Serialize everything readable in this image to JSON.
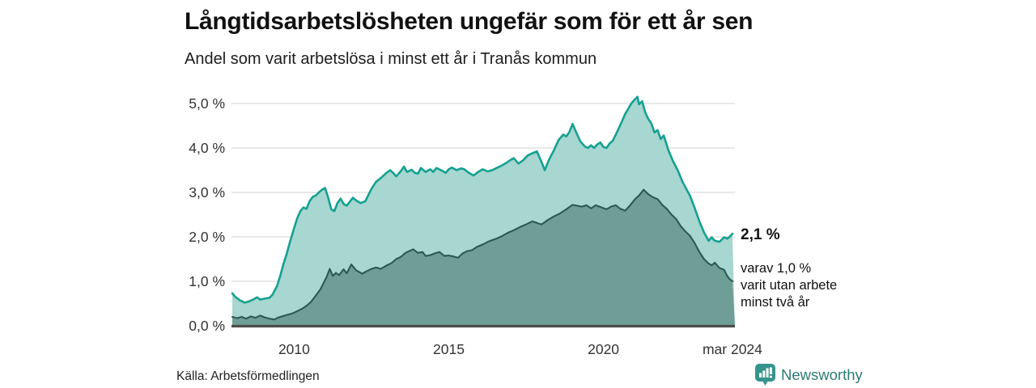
{
  "header": {
    "title": "Långtidsarbetslösheten ungefär som för ett år sen",
    "subtitle": "Andel som varit arbetslösa i minst ett år i Tranås kommun"
  },
  "annotation": {
    "value_label": "2,1 %",
    "detail_lines": [
      "varav 1,0 %",
      "varit utan arbete",
      "minst två år"
    ]
  },
  "footer": {
    "source": "Källa: Arbetsförmedlingen",
    "brand": "Newsworthy"
  },
  "colors": {
    "title": "#111111",
    "grid": "#d9d9d9",
    "baseline": "#4d4d4d",
    "tick_text": "#333333",
    "series_total_line": "#14a191",
    "series_total_fill": "#a8d6d0",
    "series_two_years_line": "#2b5a52",
    "series_two_years_fill": "#6f9e96",
    "brand_teal": "#2d7a74",
    "logo_teal": "#35948d"
  },
  "chart_data": {
    "type": "area",
    "title": "Långtidsarbetslösheten ungefär som för ett år sen",
    "subtitle": "Andel som varit arbetslösa i minst ett år i Tranås kommun",
    "unit": "percent",
    "grid": true,
    "legend_position": "none",
    "x_domain": [
      2008.0,
      2024.25
    ],
    "ylim": [
      0,
      5.5
    ],
    "y_ticks": [
      {
        "value": 0,
        "label": "0,0 %"
      },
      {
        "value": 1,
        "label": "1,0 %"
      },
      {
        "value": 2,
        "label": "2,0 %"
      },
      {
        "value": 3,
        "label": "3,0 %"
      },
      {
        "value": 4,
        "label": "4,0 %"
      },
      {
        "value": 5,
        "label": "5,0 %"
      }
    ],
    "x_ticks": [
      {
        "value": 2010,
        "label": "2010"
      },
      {
        "value": 2015,
        "label": "2015"
      },
      {
        "value": 2020,
        "label": "2020"
      },
      {
        "value": 2024.17,
        "label": "mar 2024"
      }
    ],
    "series": [
      {
        "name": "Andel arbetslösa minst ett år",
        "end_label": "2,1 %",
        "line_color": "#14a191",
        "fill_color": "#a8d6d0",
        "points": [
          [
            2008.0,
            0.73
          ],
          [
            2008.1,
            0.65
          ],
          [
            2008.25,
            0.57
          ],
          [
            2008.4,
            0.52
          ],
          [
            2008.55,
            0.55
          ],
          [
            2008.7,
            0.6
          ],
          [
            2008.8,
            0.64
          ],
          [
            2008.9,
            0.59
          ],
          [
            2009.05,
            0.61
          ],
          [
            2009.2,
            0.63
          ],
          [
            2009.3,
            0.7
          ],
          [
            2009.45,
            0.9
          ],
          [
            2009.55,
            1.12
          ],
          [
            2009.65,
            1.38
          ],
          [
            2009.75,
            1.6
          ],
          [
            2009.85,
            1.85
          ],
          [
            2010.0,
            2.2
          ],
          [
            2010.1,
            2.42
          ],
          [
            2010.2,
            2.58
          ],
          [
            2010.3,
            2.66
          ],
          [
            2010.4,
            2.63
          ],
          [
            2010.5,
            2.8
          ],
          [
            2010.6,
            2.9
          ],
          [
            2010.7,
            2.93
          ],
          [
            2010.8,
            3.0
          ],
          [
            2010.9,
            3.06
          ],
          [
            2011.0,
            3.1
          ],
          [
            2011.1,
            2.88
          ],
          [
            2011.2,
            2.62
          ],
          [
            2011.3,
            2.58
          ],
          [
            2011.4,
            2.76
          ],
          [
            2011.5,
            2.86
          ],
          [
            2011.6,
            2.74
          ],
          [
            2011.7,
            2.7
          ],
          [
            2011.8,
            2.79
          ],
          [
            2011.9,
            2.88
          ],
          [
            2012.0,
            2.82
          ],
          [
            2012.15,
            2.76
          ],
          [
            2012.3,
            2.8
          ],
          [
            2012.4,
            2.94
          ],
          [
            2012.5,
            3.08
          ],
          [
            2012.65,
            3.24
          ],
          [
            2012.8,
            3.32
          ],
          [
            2012.95,
            3.42
          ],
          [
            2013.1,
            3.5
          ],
          [
            2013.2,
            3.44
          ],
          [
            2013.3,
            3.36
          ],
          [
            2013.45,
            3.48
          ],
          [
            2013.55,
            3.58
          ],
          [
            2013.65,
            3.46
          ],
          [
            2013.8,
            3.51
          ],
          [
            2013.9,
            3.44
          ],
          [
            2014.0,
            3.42
          ],
          [
            2014.1,
            3.55
          ],
          [
            2014.25,
            3.46
          ],
          [
            2014.4,
            3.52
          ],
          [
            2014.5,
            3.46
          ],
          [
            2014.6,
            3.55
          ],
          [
            2014.75,
            3.5
          ],
          [
            2014.9,
            3.44
          ],
          [
            2015.0,
            3.52
          ],
          [
            2015.1,
            3.56
          ],
          [
            2015.25,
            3.5
          ],
          [
            2015.4,
            3.54
          ],
          [
            2015.5,
            3.52
          ],
          [
            2015.65,
            3.44
          ],
          [
            2015.8,
            3.38
          ],
          [
            2015.95,
            3.46
          ],
          [
            2016.1,
            3.52
          ],
          [
            2016.25,
            3.47
          ],
          [
            2016.4,
            3.5
          ],
          [
            2016.55,
            3.55
          ],
          [
            2016.7,
            3.6
          ],
          [
            2016.85,
            3.66
          ],
          [
            2017.0,
            3.73
          ],
          [
            2017.1,
            3.77
          ],
          [
            2017.25,
            3.65
          ],
          [
            2017.4,
            3.72
          ],
          [
            2017.55,
            3.83
          ],
          [
            2017.7,
            3.88
          ],
          [
            2017.85,
            3.92
          ],
          [
            2018.0,
            3.68
          ],
          [
            2018.1,
            3.5
          ],
          [
            2018.25,
            3.75
          ],
          [
            2018.4,
            3.95
          ],
          [
            2018.55,
            4.18
          ],
          [
            2018.7,
            4.3
          ],
          [
            2018.8,
            4.26
          ],
          [
            2018.9,
            4.36
          ],
          [
            2019.0,
            4.54
          ],
          [
            2019.1,
            4.38
          ],
          [
            2019.25,
            4.15
          ],
          [
            2019.4,
            4.03
          ],
          [
            2019.5,
            4.0
          ],
          [
            2019.6,
            4.06
          ],
          [
            2019.7,
            4.0
          ],
          [
            2019.8,
            4.08
          ],
          [
            2019.9,
            4.12
          ],
          [
            2020.0,
            4.02
          ],
          [
            2020.1,
            4.0
          ],
          [
            2020.2,
            4.1
          ],
          [
            2020.3,
            4.16
          ],
          [
            2020.4,
            4.3
          ],
          [
            2020.5,
            4.45
          ],
          [
            2020.6,
            4.6
          ],
          [
            2020.7,
            4.76
          ],
          [
            2020.8,
            4.88
          ],
          [
            2020.9,
            5.0
          ],
          [
            2021.0,
            5.08
          ],
          [
            2021.1,
            5.15
          ],
          [
            2021.15,
            4.98
          ],
          [
            2021.25,
            5.05
          ],
          [
            2021.35,
            4.8
          ],
          [
            2021.45,
            4.65
          ],
          [
            2021.55,
            4.55
          ],
          [
            2021.65,
            4.35
          ],
          [
            2021.75,
            4.4
          ],
          [
            2021.85,
            4.2
          ],
          [
            2021.95,
            4.28
          ],
          [
            2022.1,
            3.95
          ],
          [
            2022.25,
            3.7
          ],
          [
            2022.4,
            3.5
          ],
          [
            2022.55,
            3.25
          ],
          [
            2022.7,
            3.05
          ],
          [
            2022.8,
            2.92
          ],
          [
            2022.95,
            2.65
          ],
          [
            2023.1,
            2.35
          ],
          [
            2023.25,
            2.1
          ],
          [
            2023.4,
            1.91
          ],
          [
            2023.5,
            1.99
          ],
          [
            2023.6,
            1.91
          ],
          [
            2023.75,
            1.89
          ],
          [
            2023.9,
            1.99
          ],
          [
            2024.0,
            1.96
          ],
          [
            2024.08,
            2.0
          ],
          [
            2024.17,
            2.07
          ]
        ]
      },
      {
        "name": "varav utan arbete minst två år",
        "end_label": "1,0 %",
        "line_color": "#2b5a52",
        "fill_color": "#6f9e96",
        "points": [
          [
            2008.0,
            0.2
          ],
          [
            2008.15,
            0.17
          ],
          [
            2008.3,
            0.2
          ],
          [
            2008.45,
            0.16
          ],
          [
            2008.6,
            0.21
          ],
          [
            2008.75,
            0.18
          ],
          [
            2008.9,
            0.23
          ],
          [
            2009.05,
            0.19
          ],
          [
            2009.2,
            0.16
          ],
          [
            2009.35,
            0.14
          ],
          [
            2009.5,
            0.19
          ],
          [
            2009.65,
            0.22
          ],
          [
            2009.8,
            0.25
          ],
          [
            2009.95,
            0.28
          ],
          [
            2010.1,
            0.33
          ],
          [
            2010.25,
            0.38
          ],
          [
            2010.4,
            0.45
          ],
          [
            2010.55,
            0.54
          ],
          [
            2010.7,
            0.68
          ],
          [
            2010.85,
            0.82
          ],
          [
            2010.95,
            0.96
          ],
          [
            2011.05,
            1.1
          ],
          [
            2011.15,
            1.28
          ],
          [
            2011.25,
            1.12
          ],
          [
            2011.35,
            1.19
          ],
          [
            2011.45,
            1.14
          ],
          [
            2011.6,
            1.27
          ],
          [
            2011.7,
            1.18
          ],
          [
            2011.85,
            1.38
          ],
          [
            2012.0,
            1.25
          ],
          [
            2012.2,
            1.17
          ],
          [
            2012.35,
            1.23
          ],
          [
            2012.5,
            1.28
          ],
          [
            2012.65,
            1.31
          ],
          [
            2012.8,
            1.28
          ],
          [
            2013.0,
            1.36
          ],
          [
            2013.15,
            1.41
          ],
          [
            2013.3,
            1.5
          ],
          [
            2013.45,
            1.55
          ],
          [
            2013.6,
            1.64
          ],
          [
            2013.75,
            1.69
          ],
          [
            2013.85,
            1.72
          ],
          [
            2014.0,
            1.64
          ],
          [
            2014.15,
            1.66
          ],
          [
            2014.25,
            1.57
          ],
          [
            2014.4,
            1.59
          ],
          [
            2014.55,
            1.63
          ],
          [
            2014.7,
            1.66
          ],
          [
            2014.85,
            1.57
          ],
          [
            2015.0,
            1.58
          ],
          [
            2015.15,
            1.56
          ],
          [
            2015.3,
            1.53
          ],
          [
            2015.45,
            1.63
          ],
          [
            2015.6,
            1.68
          ],
          [
            2015.75,
            1.7
          ],
          [
            2015.9,
            1.77
          ],
          [
            2016.1,
            1.83
          ],
          [
            2016.3,
            1.9
          ],
          [
            2016.5,
            1.95
          ],
          [
            2016.7,
            2.01
          ],
          [
            2016.9,
            2.09
          ],
          [
            2017.1,
            2.15
          ],
          [
            2017.3,
            2.22
          ],
          [
            2017.5,
            2.28
          ],
          [
            2017.7,
            2.35
          ],
          [
            2017.9,
            2.3
          ],
          [
            2018.0,
            2.28
          ],
          [
            2018.2,
            2.38
          ],
          [
            2018.4,
            2.46
          ],
          [
            2018.6,
            2.53
          ],
          [
            2018.8,
            2.62
          ],
          [
            2019.0,
            2.72
          ],
          [
            2019.15,
            2.7
          ],
          [
            2019.3,
            2.68
          ],
          [
            2019.45,
            2.71
          ],
          [
            2019.6,
            2.64
          ],
          [
            2019.75,
            2.71
          ],
          [
            2019.9,
            2.67
          ],
          [
            2020.1,
            2.62
          ],
          [
            2020.25,
            2.68
          ],
          [
            2020.4,
            2.71
          ],
          [
            2020.55,
            2.63
          ],
          [
            2020.7,
            2.59
          ],
          [
            2020.85,
            2.7
          ],
          [
            2021.0,
            2.83
          ],
          [
            2021.15,
            2.93
          ],
          [
            2021.3,
            3.06
          ],
          [
            2021.45,
            2.96
          ],
          [
            2021.6,
            2.89
          ],
          [
            2021.75,
            2.85
          ],
          [
            2021.9,
            2.72
          ],
          [
            2022.05,
            2.63
          ],
          [
            2022.2,
            2.5
          ],
          [
            2022.35,
            2.4
          ],
          [
            2022.5,
            2.24
          ],
          [
            2022.65,
            2.12
          ],
          [
            2022.8,
            2.02
          ],
          [
            2022.95,
            1.86
          ],
          [
            2023.1,
            1.66
          ],
          [
            2023.25,
            1.5
          ],
          [
            2023.4,
            1.4
          ],
          [
            2023.5,
            1.36
          ],
          [
            2023.6,
            1.42
          ],
          [
            2023.75,
            1.3
          ],
          [
            2023.9,
            1.26
          ],
          [
            2024.0,
            1.12
          ],
          [
            2024.08,
            1.05
          ],
          [
            2024.17,
            1.0
          ]
        ]
      }
    ],
    "annotations": [
      {
        "text": "2,1 %",
        "bold": true,
        "attached_to": "end of series 1"
      },
      {
        "text": "varav 1,0 % varit utan arbete minst två år",
        "attached_to": "end of series 2"
      }
    ]
  }
}
